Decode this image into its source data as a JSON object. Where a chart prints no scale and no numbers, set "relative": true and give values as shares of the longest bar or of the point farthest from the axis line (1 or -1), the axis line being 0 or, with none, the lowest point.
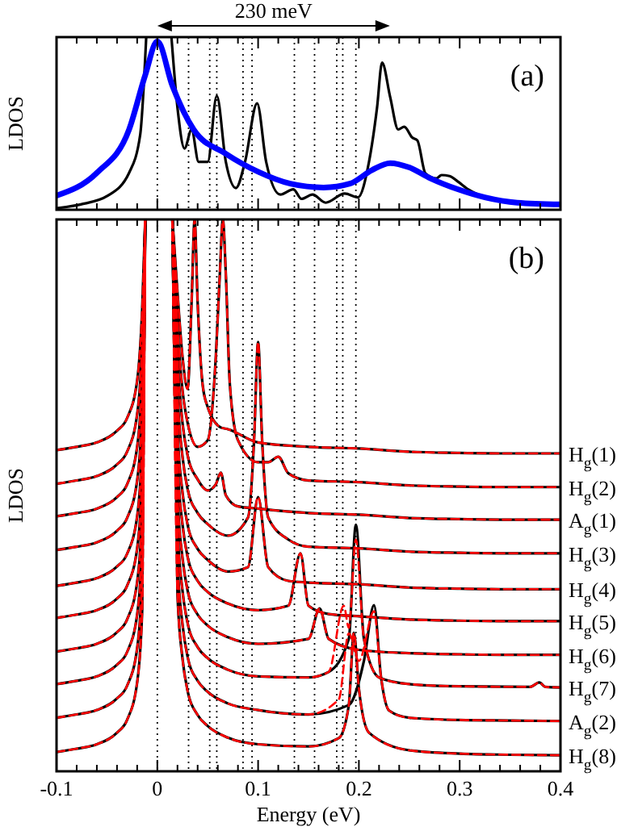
{
  "chart_data": [
    {
      "type": "line",
      "ylabel": "LDOS",
      "relative": true,
      "xlim": [
        -0.1,
        0.4
      ],
      "xticks": [
        {
          "value": -0.1,
          "label": null
        },
        {
          "value": -0.08,
          "label": null
        },
        {
          "value": -0.06,
          "label": null
        },
        {
          "value": -0.04,
          "label": null
        },
        {
          "value": -0.02,
          "label": null
        },
        {
          "value": 0,
          "label": null
        },
        {
          "value": 0.02,
          "label": null
        },
        {
          "value": 0.04,
          "label": null
        },
        {
          "value": 0.06,
          "label": null
        },
        {
          "value": 0.08,
          "label": null
        },
        {
          "value": 0.1,
          "label": null
        },
        {
          "value": 0.12,
          "label": null
        },
        {
          "value": 0.14,
          "label": null
        },
        {
          "value": 0.16,
          "label": null
        },
        {
          "value": 0.18,
          "label": null
        },
        {
          "value": 0.2,
          "label": null
        },
        {
          "value": 0.22,
          "label": null
        },
        {
          "value": 0.24,
          "label": null
        },
        {
          "value": 0.26,
          "label": null
        },
        {
          "value": 0.28,
          "label": null
        },
        {
          "value": 0.3,
          "label": null
        },
        {
          "value": 0.32,
          "label": null
        },
        {
          "value": 0.34,
          "label": null
        },
        {
          "value": 0.36,
          "label": null
        },
        {
          "value": 0.38,
          "label": null
        },
        {
          "value": 0.4,
          "label": null
        }
      ],
      "tick_labels": "y",
      "annotations": [
        "(a)",
        "230 meV"
      ],
      "ref_lines": [
        {
          "axis": "x",
          "value": 0,
          "color": "#000000",
          "line_style": "dotted"
        },
        {
          "axis": "x",
          "value": 0.031,
          "color": "#000000",
          "line_style": "dotted"
        },
        {
          "axis": "x",
          "value": 0.052,
          "color": "#000000",
          "line_style": "dotted"
        },
        {
          "axis": "x",
          "value": 0.059,
          "color": "#000000",
          "line_style": "dotted"
        },
        {
          "axis": "x",
          "value": 0.085,
          "color": "#000000",
          "line_style": "dotted"
        },
        {
          "axis": "x",
          "value": 0.094,
          "color": "#000000",
          "line_style": "dotted"
        },
        {
          "axis": "x",
          "value": 0.136,
          "color": "#000000",
          "line_style": "dotted"
        },
        {
          "axis": "x",
          "value": 0.156,
          "color": "#000000",
          "line_style": "dotted"
        },
        {
          "axis": "x",
          "value": 0.178,
          "color": "#000000",
          "line_style": "dotted"
        },
        {
          "axis": "x",
          "value": 0.184,
          "color": "#000000",
          "line_style": "dotted"
        },
        {
          "axis": "x",
          "value": 0.197,
          "color": "#000000",
          "line_style": "dotted"
        }
      ],
      "series": [
        {
          "color": "#000000",
          "x": [
            -0.1,
            -0.076,
            -0.049,
            -0.028,
            -0.017,
            -0.011,
            0,
            0.014,
            0.02,
            0.027,
            0.034,
            0.041,
            0.05,
            0.059,
            0.068,
            0.078,
            0.087,
            0.099,
            0.108,
            0.122,
            0.135,
            0.143,
            0.154,
            0.167,
            0.186,
            0.199,
            0.21,
            0.218,
            0.223,
            0.231,
            0.239,
            0.245,
            0.253,
            0.258,
            0.266,
            0.277,
            0.282,
            0.29,
            0.298,
            0.309,
            0.325,
            0.351,
            0.4
          ],
          "values": [
            0.009,
            0.031,
            0.082,
            0.214,
            0.434,
            1,
            null,
            1,
            0.591,
            0.355,
            0.465,
            0.277,
            0.277,
            0.66,
            0.277,
            0.126,
            0.277,
            0.616,
            0.277,
            0.088,
            0.119,
            0.063,
            0.088,
            0.041,
            0.094,
            0.072,
            0.277,
            0.591,
            0.852,
            0.654,
            0.465,
            0.481,
            0.418,
            0.402,
            0.211,
            0.182,
            0.201,
            0.195,
            0.164,
            0.116,
            0.072,
            0.041,
            0.031
          ]
        },
        {
          "color": "#0000ff",
          "x": [
            -0.1,
            -0.06,
            -0.028,
            -0.012,
            0,
            0.015,
            0.036,
            0.068,
            0.1,
            0.132,
            0.165,
            0.191,
            0.213,
            0.231,
            0.25,
            0.271,
            0.298,
            0.325,
            0.357,
            0.4
          ],
          "values": [
            0.082,
            0.214,
            0.465,
            0.78,
            0.975,
            0.717,
            0.465,
            0.324,
            0.22,
            0.151,
            0.129,
            0.151,
            0.23,
            0.27,
            0.245,
            0.182,
            0.119,
            0.072,
            0.041,
            0.031
          ]
        }
      ]
    },
    {
      "type": "line",
      "ylabel": "LDOS",
      "xlabel": "Energy (eV)",
      "relative": true,
      "xlim": [
        -0.1,
        0.4
      ],
      "xticks": [
        -0.1,
        {
          "value": -0.08,
          "label": null
        },
        {
          "value": -0.06,
          "label": null
        },
        {
          "value": -0.04,
          "label": null
        },
        {
          "value": -0.02,
          "label": null
        },
        0,
        {
          "value": 0.02,
          "label": null
        },
        {
          "value": 0.04,
          "label": null
        },
        {
          "value": 0.06,
          "label": null
        },
        {
          "value": 0.08,
          "label": null
        },
        0.1,
        {
          "value": 0.12,
          "label": null
        },
        {
          "value": 0.14,
          "label": null
        },
        {
          "value": 0.16,
          "label": null
        },
        {
          "value": 0.18,
          "label": null
        },
        0.2,
        {
          "value": 0.22,
          "label": null
        },
        {
          "value": 0.24,
          "label": null
        },
        {
          "value": 0.26,
          "label": null
        },
        {
          "value": 0.28,
          "label": null
        },
        0.3,
        {
          "value": 0.32,
          "label": null
        },
        {
          "value": 0.34,
          "label": null
        },
        {
          "value": 0.36,
          "label": null
        },
        {
          "value": 0.38,
          "label": null
        },
        0.4
      ],
      "tick_labels": "x",
      "annotations": [
        "(b)"
      ],
      "ref_lines": [
        {
          "axis": "x",
          "value": 0,
          "color": "#000000",
          "line_style": "dotted"
        },
        {
          "axis": "x",
          "value": 0.031,
          "color": "#000000",
          "line_style": "dotted"
        },
        {
          "axis": "x",
          "value": 0.052,
          "color": "#000000",
          "line_style": "dotted"
        },
        {
          "axis": "x",
          "value": 0.059,
          "color": "#000000",
          "line_style": "dotted"
        },
        {
          "axis": "x",
          "value": 0.085,
          "color": "#000000",
          "line_style": "dotted"
        },
        {
          "axis": "x",
          "value": 0.094,
          "color": "#000000",
          "line_style": "dotted"
        },
        {
          "axis": "x",
          "value": 0.136,
          "color": "#000000",
          "line_style": "dotted"
        },
        {
          "axis": "x",
          "value": 0.156,
          "color": "#000000",
          "line_style": "dotted"
        },
        {
          "axis": "x",
          "value": 0.178,
          "color": "#000000",
          "line_style": "dotted"
        },
        {
          "axis": "x",
          "value": 0.184,
          "color": "#000000",
          "line_style": "dotted"
        },
        {
          "axis": "x",
          "value": 0.197,
          "color": "#000000",
          "line_style": "dotted"
        }
      ],
      "series": [
        {
          "name": "H$_{g}$(1)",
          "color": "#000000",
          "x": [
            -0.1,
            -0.08,
            -0.06,
            -0.04,
            -0.03,
            -0.02,
            -0.015,
            -0.012,
            0,
            0.015,
            0.02,
            0.025,
            0.03,
            0.034,
            0.037,
            0.04,
            0.045,
            0.05,
            0.063,
            0.07,
            0.1,
            0.15,
            0.2,
            0.25,
            0.3,
            0.35,
            0.4
          ],
          "values": [
            0.582,
            0.588,
            0.596,
            0.617,
            0.64,
            0.708,
            0.839,
            1,
            null,
            1,
            0.868,
            0.751,
            0.693,
            0.85,
            1,
            0.85,
            0.7,
            0.66,
            0.623,
            0.62,
            0.596,
            0.588,
            0.585,
            0.579,
            0.577,
            0.576,
            0.576
          ]
        },
        {
          "name": "H$_{g}$(2)",
          "color": "#000000",
          "x": [
            -0.1,
            -0.08,
            -0.06,
            -0.04,
            -0.03,
            -0.02,
            -0.015,
            -0.012,
            0,
            0.015,
            0.02,
            0.025,
            0.03,
            0.04,
            0.05,
            0.058,
            0.062,
            0.065,
            0.068,
            0.072,
            0.08,
            0.1,
            0.11,
            0.12,
            0.13,
            0.15,
            0.2,
            0.25,
            0.3,
            0.35,
            0.4
          ],
          "values": [
            0.521,
            0.527,
            0.535,
            0.556,
            0.579,
            0.647,
            0.778,
            1,
            null,
            1,
            0.807,
            0.69,
            0.632,
            0.588,
            0.6,
            0.75,
            0.9,
            1,
            0.9,
            0.7,
            0.6,
            0.56,
            0.56,
            0.57,
            0.54,
            0.527,
            0.524,
            0.518,
            0.516,
            0.515,
            0.515
          ]
        },
        {
          "name": "A$_{g}$(1)",
          "color": "#000000",
          "x": [
            -0.1,
            -0.08,
            -0.06,
            -0.04,
            -0.03,
            -0.02,
            -0.015,
            -0.012,
            0,
            0.015,
            0.02,
            0.025,
            0.03,
            0.04,
            0.05,
            0.058,
            0.063,
            0.068,
            0.08,
            0.1,
            0.15,
            0.2,
            0.25,
            0.3,
            0.35,
            0.4
          ],
          "values": [
            0.462,
            0.468,
            0.476,
            0.497,
            0.52,
            0.588,
            0.719,
            1,
            null,
            1,
            0.748,
            0.631,
            0.573,
            0.529,
            0.509,
            0.52,
            0.541,
            0.5,
            0.48,
            0.476,
            0.468,
            0.465,
            0.459,
            0.457,
            0.456,
            0.456
          ]
        },
        {
          "name": "H$_{g}$(3)",
          "color": "#000000",
          "x": [
            -0.1,
            -0.08,
            -0.06,
            -0.04,
            -0.03,
            -0.02,
            -0.015,
            -0.012,
            0,
            0.015,
            0.02,
            0.025,
            0.03,
            0.04,
            0.05,
            0.07,
            0.09,
            0.096,
            0.1,
            0.104,
            0.11,
            0.13,
            0.15,
            0.2,
            0.25,
            0.3,
            0.35,
            0.4
          ],
          "values": [
            0.401,
            0.407,
            0.415,
            0.436,
            0.459,
            0.527,
            0.658,
            1,
            null,
            1,
            0.687,
            0.57,
            0.512,
            0.468,
            0.448,
            0.427,
            0.46,
            0.6,
            0.778,
            0.6,
            0.46,
            0.42,
            0.407,
            0.404,
            0.398,
            0.396,
            0.395,
            0.395
          ]
        },
        {
          "name": "H$_{g}$(4)",
          "color": "#000000",
          "x": [
            -0.1,
            -0.08,
            -0.06,
            -0.04,
            -0.03,
            -0.02,
            -0.015,
            -0.012,
            0,
            0.015,
            0.02,
            0.025,
            0.03,
            0.04,
            0.05,
            0.07,
            0.09,
            0.1,
            0.11,
            0.13,
            0.15,
            0.2,
            0.25,
            0.3,
            0.35,
            0.4
          ],
          "values": [
            0.336,
            0.342,
            0.35,
            0.371,
            0.394,
            0.462,
            0.593,
            1,
            null,
            1,
            0.622,
            0.505,
            0.447,
            0.403,
            0.383,
            0.362,
            0.37,
            0.497,
            0.37,
            0.345,
            0.342,
            0.339,
            0.333,
            0.331,
            0.33,
            0.33
          ]
        },
        {
          "name": "H$_{g}$(5)",
          "color": "#000000",
          "x": [
            -0.1,
            -0.08,
            -0.06,
            -0.04,
            -0.03,
            -0.02,
            -0.015,
            -0.012,
            0,
            0.015,
            0.02,
            0.025,
            0.03,
            0.04,
            0.05,
            0.07,
            0.1,
            0.13,
            0.142,
            0.15,
            0.17,
            0.2,
            0.25,
            0.3,
            0.35,
            0.4
          ],
          "values": [
            0.278,
            0.284,
            0.292,
            0.313,
            0.336,
            0.404,
            0.535,
            1,
            null,
            1,
            0.564,
            0.447,
            0.389,
            0.345,
            0.325,
            0.304,
            0.292,
            0.3,
            0.395,
            0.3,
            0.285,
            0.281,
            0.275,
            0.273,
            0.272,
            0.272
          ]
        },
        {
          "name": "H$_{g}$(6)",
          "color": "#000000",
          "x": [
            -0.1,
            -0.08,
            -0.06,
            -0.04,
            -0.03,
            -0.02,
            -0.015,
            -0.012,
            0,
            0.015,
            0.02,
            0.025,
            0.03,
            0.04,
            0.05,
            0.07,
            0.1,
            0.15,
            0.161,
            0.17,
            0.2,
            0.25,
            0.3,
            0.35,
            0.4
          ],
          "values": [
            0.217,
            0.223,
            0.231,
            0.252,
            0.275,
            0.343,
            0.474,
            1,
            null,
            1,
            0.503,
            0.386,
            0.328,
            0.284,
            0.264,
            0.243,
            0.231,
            0.24,
            0.295,
            0.24,
            0.22,
            0.214,
            0.212,
            0.211,
            0.211
          ]
        },
        {
          "name": "H$_{g}$(7)",
          "color": "#000000",
          "x": [
            -0.1,
            -0.08,
            -0.06,
            -0.04,
            -0.03,
            -0.02,
            -0.015,
            -0.012,
            0,
            0.015,
            0.02,
            0.025,
            0.03,
            0.04,
            0.05,
            0.07,
            0.1,
            0.15,
            0.17,
            0.19,
            0.197,
            0.205,
            0.22,
            0.25,
            0.3,
            0.37,
            0.379,
            0.385,
            0.4
          ],
          "values": [
            0.158,
            0.164,
            0.172,
            0.193,
            0.216,
            0.284,
            0.415,
            1,
            null,
            1,
            0.444,
            0.327,
            0.269,
            0.225,
            0.205,
            0.184,
            0.172,
            0.17,
            0.18,
            0.24,
            0.447,
            0.24,
            0.17,
            0.158,
            0.154,
            0.153,
            0.161,
            0.153,
            0.152
          ]
        },
        {
          "name": "A$_{g}$(2)",
          "color": "#000000",
          "x": [
            -0.1,
            -0.08,
            -0.06,
            -0.04,
            -0.03,
            -0.02,
            -0.015,
            -0.012,
            0,
            0.015,
            0.02,
            0.025,
            0.03,
            0.04,
            0.05,
            0.07,
            0.1,
            0.15,
            0.19,
            0.205,
            0.215,
            0.222,
            0.23,
            0.25,
            0.3,
            0.35,
            0.4
          ],
          "values": [
            0.097,
            0.103,
            0.111,
            0.132,
            0.155,
            0.223,
            0.354,
            1,
            null,
            1,
            0.383,
            0.266,
            0.208,
            0.164,
            0.144,
            0.123,
            0.111,
            0.103,
            0.12,
            0.2,
            0.301,
            0.17,
            0.11,
            0.097,
            0.093,
            0.092,
            0.091
          ]
        },
        {
          "name": "H$_{g}$(8)",
          "color": "#000000",
          "x": [
            -0.1,
            -0.08,
            -0.06,
            -0.04,
            -0.03,
            -0.02,
            -0.015,
            -0.012,
            0,
            0.015,
            0.02,
            0.025,
            0.03,
            0.04,
            0.05,
            0.07,
            0.1,
            0.15,
            0.18,
            0.19,
            0.195,
            0.2,
            0.21,
            0.25,
            0.3,
            0.35,
            0.4
          ],
          "values": [
            0.035,
            0.041,
            0.049,
            0.07,
            0.093,
            0.161,
            0.292,
            1,
            null,
            1,
            0.321,
            0.204,
            0.146,
            0.102,
            0.082,
            0.061,
            0.049,
            0.045,
            0.06,
            0.12,
            0.251,
            0.15,
            0.07,
            0.038,
            0.032,
            0.03,
            0.029
          ]
        },
        {
          "color": "#ff0000",
          "line_style": "dashed",
          "x": [
            -0.1,
            -0.08,
            -0.06,
            -0.04,
            -0.03,
            -0.02,
            -0.015,
            -0.012,
            0,
            0.015,
            0.02,
            0.025,
            0.03,
            0.034,
            0.037,
            0.04,
            0.045,
            0.05,
            0.063,
            0.07,
            0.1,
            0.15,
            0.2,
            0.25,
            0.3,
            0.35,
            0.4
          ],
          "values": [
            0.582,
            0.588,
            0.596,
            0.617,
            0.64,
            0.708,
            0.839,
            1,
            null,
            1,
            0.868,
            0.751,
            0.693,
            0.85,
            1,
            0.85,
            0.7,
            0.66,
            0.623,
            0.62,
            0.596,
            0.588,
            0.585,
            0.579,
            0.577,
            0.576,
            0.576
          ]
        },
        {
          "color": "#ff0000",
          "line_style": "dashed",
          "x": [
            -0.1,
            -0.08,
            -0.06,
            -0.04,
            -0.03,
            -0.02,
            -0.015,
            -0.012,
            0,
            0.015,
            0.02,
            0.025,
            0.03,
            0.04,
            0.05,
            0.058,
            0.062,
            0.065,
            0.068,
            0.072,
            0.08,
            0.1,
            0.11,
            0.12,
            0.13,
            0.15,
            0.2,
            0.25,
            0.3,
            0.35,
            0.4
          ],
          "values": [
            0.521,
            0.527,
            0.535,
            0.556,
            0.579,
            0.647,
            0.778,
            1,
            null,
            1,
            0.807,
            0.69,
            0.632,
            0.588,
            0.6,
            0.75,
            0.9,
            1,
            0.9,
            0.7,
            0.6,
            0.56,
            0.56,
            0.57,
            0.54,
            0.527,
            0.524,
            0.518,
            0.516,
            0.515,
            0.515
          ]
        },
        {
          "color": "#ff0000",
          "line_style": "dashed",
          "x": [
            -0.1,
            -0.08,
            -0.06,
            -0.04,
            -0.03,
            -0.02,
            -0.015,
            -0.012,
            0,
            0.015,
            0.02,
            0.025,
            0.03,
            0.04,
            0.05,
            0.058,
            0.063,
            0.068,
            0.08,
            0.1,
            0.15,
            0.2,
            0.25,
            0.3,
            0.35,
            0.4
          ],
          "values": [
            0.462,
            0.468,
            0.476,
            0.497,
            0.52,
            0.588,
            0.719,
            1,
            null,
            1,
            0.748,
            0.631,
            0.573,
            0.529,
            0.509,
            0.52,
            0.541,
            0.5,
            0.48,
            0.476,
            0.468,
            0.465,
            0.459,
            0.457,
            0.456,
            0.456
          ]
        },
        {
          "color": "#ff0000",
          "line_style": "dashed",
          "x": [
            -0.1,
            -0.08,
            -0.06,
            -0.04,
            -0.03,
            -0.02,
            -0.015,
            -0.012,
            0,
            0.015,
            0.02,
            0.025,
            0.03,
            0.04,
            0.05,
            0.07,
            0.09,
            0.096,
            0.1,
            0.104,
            0.11,
            0.13,
            0.15,
            0.2,
            0.25,
            0.3,
            0.35,
            0.4
          ],
          "values": [
            0.401,
            0.407,
            0.415,
            0.436,
            0.459,
            0.527,
            0.658,
            1,
            null,
            1,
            0.687,
            0.57,
            0.512,
            0.468,
            0.448,
            0.427,
            0.46,
            0.6,
            0.778,
            0.6,
            0.46,
            0.42,
            0.407,
            0.404,
            0.398,
            0.396,
            0.395,
            0.395
          ]
        },
        {
          "color": "#ff0000",
          "line_style": "dashed",
          "x": [
            -0.1,
            -0.08,
            -0.06,
            -0.04,
            -0.03,
            -0.02,
            -0.015,
            -0.012,
            0,
            0.015,
            0.02,
            0.025,
            0.03,
            0.04,
            0.05,
            0.07,
            0.09,
            0.1,
            0.11,
            0.13,
            0.15,
            0.2,
            0.25,
            0.3,
            0.35,
            0.4
          ],
          "values": [
            0.336,
            0.342,
            0.35,
            0.371,
            0.394,
            0.462,
            0.593,
            1,
            null,
            1,
            0.622,
            0.505,
            0.447,
            0.403,
            0.383,
            0.362,
            0.37,
            0.497,
            0.37,
            0.345,
            0.342,
            0.339,
            0.333,
            0.331,
            0.33,
            0.33
          ]
        },
        {
          "color": "#ff0000",
          "line_style": "dashed",
          "x": [
            -0.1,
            -0.08,
            -0.06,
            -0.04,
            -0.03,
            -0.02,
            -0.015,
            -0.012,
            0,
            0.015,
            0.02,
            0.025,
            0.03,
            0.04,
            0.05,
            0.07,
            0.1,
            0.13,
            0.142,
            0.15,
            0.17,
            0.2,
            0.25,
            0.3,
            0.35,
            0.4
          ],
          "values": [
            0.278,
            0.284,
            0.292,
            0.313,
            0.336,
            0.404,
            0.535,
            1,
            null,
            1,
            0.564,
            0.447,
            0.389,
            0.345,
            0.325,
            0.304,
            0.292,
            0.3,
            0.395,
            0.3,
            0.285,
            0.281,
            0.275,
            0.273,
            0.272,
            0.272
          ]
        },
        {
          "color": "#ff0000",
          "line_style": "dashed",
          "x": [
            -0.1,
            -0.08,
            -0.06,
            -0.04,
            -0.03,
            -0.02,
            -0.015,
            -0.012,
            0,
            0.015,
            0.02,
            0.025,
            0.03,
            0.04,
            0.05,
            0.07,
            0.1,
            0.15,
            0.161,
            0.17,
            0.2,
            0.25,
            0.3,
            0.35,
            0.4
          ],
          "values": [
            0.217,
            0.223,
            0.231,
            0.252,
            0.275,
            0.343,
            0.474,
            1,
            null,
            1,
            0.503,
            0.386,
            0.328,
            0.284,
            0.264,
            0.243,
            0.231,
            0.24,
            0.295,
            0.24,
            0.22,
            0.214,
            0.212,
            0.211,
            0.211
          ]
        },
        {
          "color": "#ff0000",
          "line_style": "dashed",
          "x": [
            -0.1,
            -0.08,
            -0.06,
            -0.04,
            -0.03,
            -0.02,
            -0.015,
            -0.012,
            0,
            0.015,
            0.02,
            0.025,
            0.03,
            0.04,
            0.05,
            0.07,
            0.1,
            0.15,
            0.17,
            0.185,
            0.19,
            0.197,
            0.205,
            0.22,
            0.25,
            0.3,
            0.37,
            0.379,
            0.385,
            0.4
          ],
          "values": [
            0.158,
            0.164,
            0.172,
            0.193,
            0.216,
            0.284,
            0.415,
            1,
            null,
            1,
            0.444,
            0.327,
            0.269,
            0.225,
            0.205,
            0.184,
            0.172,
            0.17,
            0.18,
            0.3,
            0.26,
            0.42,
            0.24,
            0.17,
            0.158,
            0.154,
            0.153,
            0.161,
            0.153,
            0.152
          ]
        },
        {
          "color": "#ff0000",
          "line_style": "dashed",
          "x": [
            -0.1,
            -0.08,
            -0.06,
            -0.04,
            -0.03,
            -0.02,
            -0.015,
            -0.012,
            0,
            0.015,
            0.02,
            0.025,
            0.03,
            0.04,
            0.05,
            0.07,
            0.1,
            0.15,
            0.18,
            0.19,
            0.2,
            0.215,
            0.222,
            0.23,
            0.25,
            0.3,
            0.35,
            0.4
          ],
          "values": [
            0.097,
            0.103,
            0.111,
            0.132,
            0.155,
            0.223,
            0.354,
            1,
            null,
            1,
            0.383,
            0.266,
            0.208,
            0.164,
            0.144,
            0.123,
            0.111,
            0.103,
            0.13,
            0.25,
            0.2,
            0.29,
            0.17,
            0.11,
            0.097,
            0.093,
            0.092,
            0.091
          ]
        },
        {
          "color": "#ff0000",
          "line_style": "dashed",
          "x": [
            -0.1,
            -0.08,
            -0.06,
            -0.04,
            -0.03,
            -0.02,
            -0.015,
            -0.012,
            0,
            0.015,
            0.02,
            0.025,
            0.03,
            0.04,
            0.05,
            0.07,
            0.1,
            0.15,
            0.18,
            0.19,
            0.195,
            0.2,
            0.21,
            0.25,
            0.3,
            0.35,
            0.4
          ],
          "values": [
            0.035,
            0.041,
            0.049,
            0.07,
            0.093,
            0.161,
            0.292,
            1,
            null,
            1,
            0.321,
            0.204,
            0.146,
            0.102,
            0.082,
            0.061,
            0.049,
            0.045,
            0.06,
            0.12,
            0.251,
            0.15,
            0.07,
            0.038,
            0.032,
            0.03,
            0.029
          ]
        }
      ]
    }
  ]
}
